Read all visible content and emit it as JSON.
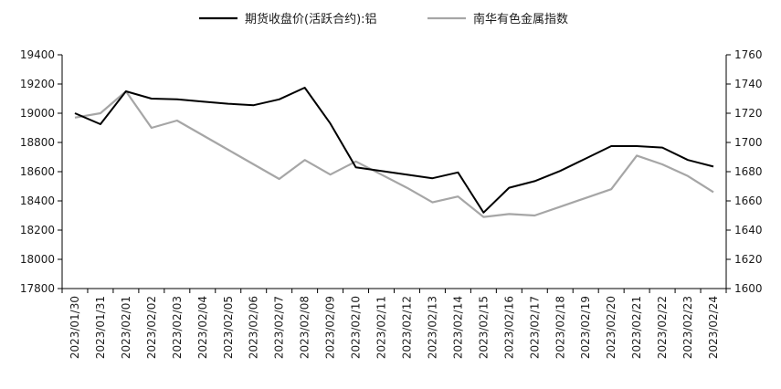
{
  "chart_data": {
    "type": "line",
    "categories": [
      "2023/01/30",
      "2023/01/31",
      "2023/02/01",
      "2023/02/02",
      "2023/02/03",
      "2023/02/04",
      "2023/02/05",
      "2023/02/06",
      "2023/02/07",
      "2023/02/08",
      "2023/02/09",
      "2023/02/10",
      "2023/02/11",
      "2023/02/12",
      "2023/02/13",
      "2023/02/14",
      "2023/02/15",
      "2023/02/16",
      "2023/02/17",
      "2023/02/18",
      "2023/02/19",
      "2023/02/20",
      "2023/02/21",
      "2023/02/22",
      "2023/02/23",
      "2023/02/24"
    ],
    "series": [
      {
        "name": "期货收盘价(活跃合约):铝",
        "axis": "left",
        "color": "#000000",
        "values": [
          19000,
          18925,
          19150,
          19100,
          19095,
          19080,
          19065,
          19055,
          19095,
          19175,
          18930,
          18630,
          18605,
          18580,
          18555,
          18595,
          18320,
          18490,
          18535,
          18605,
          18690,
          18775,
          18775,
          18765,
          18680,
          18635
        ]
      },
      {
        "name": "南华有色金属指数",
        "axis": "right",
        "color": "#a6a6a6",
        "values": [
          1717,
          1720,
          1735,
          1710,
          1715,
          1705,
          1695,
          1685,
          1675,
          1688,
          1678,
          1687,
          1678,
          1669,
          1659,
          1663,
          1649,
          1651,
          1650,
          1656,
          1662,
          1668,
          1691,
          1685,
          1677,
          1666
        ]
      }
    ],
    "yAxisLeft": {
      "min": 17800,
      "max": 19400,
      "step": 200,
      "ticks": [
        "17800",
        "18000",
        "18200",
        "18400",
        "18600",
        "18800",
        "19000",
        "19200",
        "19400"
      ]
    },
    "yAxisRight": {
      "min": 1600,
      "max": 1760,
      "step": 20,
      "ticks": [
        "1600",
        "1620",
        "1640",
        "1660",
        "1680",
        "1700",
        "1720",
        "1740",
        "1760"
      ]
    },
    "grid": false,
    "legend_position": "top-center"
  }
}
